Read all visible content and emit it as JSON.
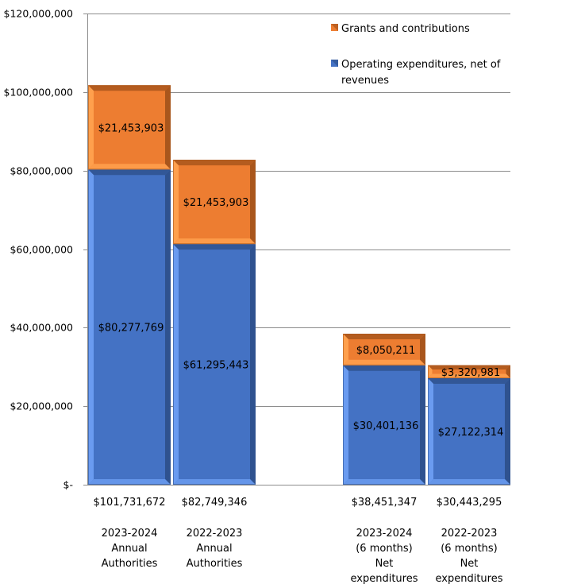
{
  "chart_data": {
    "type": "bar",
    "stacked": true,
    "title": "",
    "xlabel": "",
    "ylabel": "",
    "ylim": [
      0,
      120000000
    ],
    "y_ticks": [
      0,
      20000000,
      40000000,
      60000000,
      80000000,
      100000000,
      120000000
    ],
    "y_tick_labels": [
      "$-",
      "$20,000,000",
      "$40,000,000",
      "$60,000,000",
      "$80,000,000",
      "$100,000,000",
      "$120,000,000"
    ],
    "grid": true,
    "legend_position": "top-right",
    "categories": [
      [
        "2023-2024",
        "Annual",
        "Authorities"
      ],
      [
        "2022-2023",
        "Annual",
        "Authorities"
      ],
      [],
      [
        "2023-2024",
        "(6 months)",
        "Net",
        "expenditures"
      ],
      [
        "2022-2023",
        "(6 months)",
        "Net",
        "expenditures"
      ]
    ],
    "totals": [
      101731672,
      82749346,
      null,
      38451347,
      30443295
    ],
    "total_labels": [
      "$101,731,672",
      "$82,749,346",
      "",
      "$38,451,347",
      "$30,443,295"
    ],
    "series": [
      {
        "name": "Operating expenditures, net of revenues",
        "legend_lines": [
          "Operating expenditures, net of",
          "revenues"
        ],
        "color": "#4472C4",
        "values": [
          80277769,
          61295443,
          null,
          30401136,
          27122314
        ],
        "labels": [
          "$80,277,769",
          "$61,295,443",
          "",
          "$30,401,136",
          "$27,122,314"
        ]
      },
      {
        "name": "Grants and contributions",
        "legend_lines": [
          "Grants and contributions"
        ],
        "color": "#ED7D31",
        "values": [
          21453903,
          21453903,
          null,
          8050211,
          3320981
        ],
        "labels": [
          "$21,453,903",
          "$21,453,903",
          "",
          "$8,050,211",
          "$3,320,981"
        ]
      }
    ]
  },
  "colors": {
    "blue": "#4472C4",
    "blue_light": "#6A9BF0",
    "blue_dark": "#2F528F",
    "orange": "#ED7D31",
    "orange_light": "#FFA04D",
    "orange_dark": "#A9561C",
    "grid": "#8C8C8C"
  }
}
